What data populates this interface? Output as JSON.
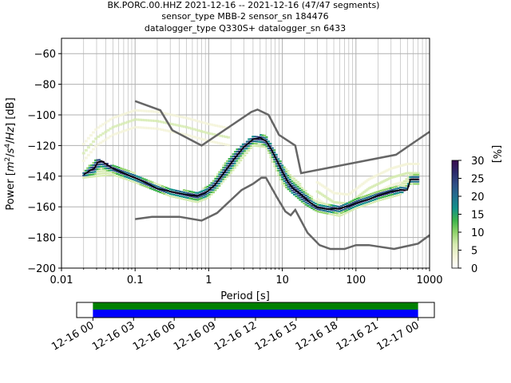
{
  "chart_data": {
    "type": "heatmap",
    "title_lines": [
      "BK.PORC.00.HHZ   2021-12-16 -- 2021-12-16  (47/47 segments)",
      "sensor_type MBB-2 sensor_sn 184476",
      "datalogger_type Q330S+ datalogger_sn 6433"
    ],
    "xlabel": "Period [s]",
    "ylabel_text": "Power [m²/s⁴/Hz] [dB]",
    "x_scale": "log",
    "xlim": [
      0.01,
      1000
    ],
    "ylim": [
      -200,
      -50
    ],
    "x_ticks": [
      {
        "value": 0.01,
        "label": "0.01"
      },
      {
        "value": 0.1,
        "label": "0.1"
      },
      {
        "value": 1,
        "label": "1"
      },
      {
        "value": 10,
        "label": "10"
      },
      {
        "value": 100,
        "label": "100"
      },
      {
        "value": 1000,
        "label": "1000"
      }
    ],
    "y_ticks": [
      {
        "value": -60,
        "label": "−60"
      },
      {
        "value": -80,
        "label": "−80"
      },
      {
        "value": -100,
        "label": "−100"
      },
      {
        "value": -120,
        "label": "−120"
      },
      {
        "value": -140,
        "label": "−140"
      },
      {
        "value": -160,
        "label": "−160"
      },
      {
        "value": -180,
        "label": "−180"
      },
      {
        "value": -200,
        "label": "−200"
      }
    ],
    "grid": true,
    "noise_model_high": [
      [
        0.1,
        -91
      ],
      [
        0.22,
        -97
      ],
      [
        0.32,
        -110
      ],
      [
        0.8,
        -120
      ],
      [
        3.8,
        -98
      ],
      [
        4.6,
        -96.5
      ],
      [
        6.5,
        -100
      ],
      [
        9,
        -113
      ],
      [
        15,
        -120
      ],
      [
        18,
        -138
      ],
      [
        350,
        -126
      ],
      [
        1000,
        -111
      ]
    ],
    "noise_model_low": [
      [
        0.1,
        -168
      ],
      [
        0.17,
        -166.5
      ],
      [
        0.4,
        -166.5
      ],
      [
        0.8,
        -169
      ],
      [
        1.3,
        -164
      ],
      [
        2.8,
        -149
      ],
      [
        4,
        -145
      ],
      [
        5.2,
        -141
      ],
      [
        6,
        -141
      ],
      [
        8.5,
        -154
      ],
      [
        11,
        -163
      ],
      [
        13,
        -165.5
      ],
      [
        15,
        -162
      ],
      [
        22,
        -177
      ],
      [
        32,
        -185
      ],
      [
        45,
        -187.5
      ],
      [
        70,
        -187.5
      ],
      [
        100,
        -185
      ],
      [
        150,
        -185
      ],
      [
        330,
        -187.5
      ],
      [
        700,
        -184
      ],
      [
        1000,
        -178.5
      ]
    ],
    "mode_line": [
      [
        0.02,
        -139
      ],
      [
        0.025,
        -136
      ],
      [
        0.028,
        -135
      ],
      [
        0.031,
        -131
      ],
      [
        0.035,
        -130
      ],
      [
        0.04,
        -132
      ],
      [
        0.05,
        -135
      ],
      [
        0.07,
        -138
      ],
      [
        0.1,
        -141
      ],
      [
        0.15,
        -145
      ],
      [
        0.2,
        -148
      ],
      [
        0.3,
        -150
      ],
      [
        0.5,
        -152
      ],
      [
        0.7,
        -153
      ],
      [
        0.9,
        -151
      ],
      [
        1.2,
        -146
      ],
      [
        1.6,
        -138
      ],
      [
        2.2,
        -129
      ],
      [
        3,
        -121
      ],
      [
        4,
        -116
      ],
      [
        5,
        -115
      ],
      [
        6,
        -117
      ],
      [
        7,
        -122
      ],
      [
        8.5,
        -130
      ],
      [
        10,
        -137
      ],
      [
        12,
        -144
      ],
      [
        14,
        -148
      ],
      [
        17,
        -151
      ],
      [
        20,
        -154
      ],
      [
        25,
        -158
      ],
      [
        30,
        -160.5
      ],
      [
        40,
        -161.5
      ],
      [
        60,
        -161
      ],
      [
        80,
        -159.5
      ],
      [
        100,
        -157.5
      ],
      [
        150,
        -155
      ],
      [
        200,
        -152.5
      ],
      [
        300,
        -150
      ],
      [
        400,
        -149
      ],
      [
        500,
        -149
      ],
      [
        550,
        -142
      ],
      [
        700,
        -142
      ]
    ],
    "histogram_spread": [
      [
        0.02,
        -141,
        -137
      ],
      [
        0.03,
        -140,
        -128
      ],
      [
        0.05,
        -139,
        -133
      ],
      [
        0.1,
        -144,
        -138
      ],
      [
        0.3,
        -153,
        -148
      ],
      [
        0.7,
        -157,
        -150
      ],
      [
        1,
        -154,
        -146
      ],
      [
        2,
        -138,
        -126
      ],
      [
        4,
        -120,
        -113
      ],
      [
        6,
        -121,
        -113
      ],
      [
        10,
        -145,
        -132
      ],
      [
        20,
        -158,
        -148
      ],
      [
        30,
        -163,
        -157
      ],
      [
        60,
        -166,
        -159
      ],
      [
        100,
        -161,
        -154
      ],
      [
        200,
        -156,
        -150
      ],
      [
        400,
        -152,
        -146
      ],
      [
        550,
        -145,
        -139
      ],
      [
        700,
        -145,
        -138
      ]
    ],
    "faint_high_traces": [
      [
        0.02,
        -125
      ],
      [
        0.03,
        -115
      ],
      [
        0.05,
        -108
      ],
      [
        0.1,
        -103
      ],
      [
        0.2,
        -104
      ],
      [
        0.5,
        -108
      ],
      [
        1,
        -112
      ],
      [
        2,
        -115
      ]
    ],
    "faint_low_traces": [
      [
        30,
        -150
      ],
      [
        50,
        -157
      ],
      [
        80,
        -158
      ],
      [
        150,
        -148
      ],
      [
        300,
        -141
      ],
      [
        500,
        -138
      ],
      [
        700,
        -138
      ]
    ],
    "colorbar": {
      "label": "[%]",
      "min": 0,
      "max": 30,
      "ticks": [
        {
          "value": 0,
          "label": "0"
        },
        {
          "value": 5,
          "label": "5"
        },
        {
          "value": 10,
          "label": "10"
        },
        {
          "value": 15,
          "label": "15"
        },
        {
          "value": 20,
          "label": "20"
        },
        {
          "value": 25,
          "label": "25"
        },
        {
          "value": 30,
          "label": "30"
        }
      ],
      "colormap": [
        "#ffffff",
        "#f4f4d8",
        "#d6ebb0",
        "#8fd36a",
        "#3cb44b",
        "#13918a",
        "#226f8f",
        "#2f4f86",
        "#2c2a6b",
        "#3a0c4d"
      ]
    },
    "timeline": {
      "start_hour": 0,
      "end_hour": 24,
      "span_start_hour": -1.2,
      "span_end_hour": 25.2,
      "ticks": [
        {
          "value": 0,
          "label": "12-16 00"
        },
        {
          "value": 3,
          "label": "12-16 03"
        },
        {
          "value": 6,
          "label": "12-16 06"
        },
        {
          "value": 9,
          "label": "12-16 09"
        },
        {
          "value": 12,
          "label": "12-16 12"
        },
        {
          "value": 15,
          "label": "12-16 15"
        },
        {
          "value": 18,
          "label": "12-16 18"
        },
        {
          "value": 21,
          "label": "12-16 21"
        },
        {
          "value": 24,
          "label": "12-17 00"
        }
      ],
      "coverage_color": "#0000ff",
      "data_color": "#008000"
    },
    "colors": {
      "grid": "#b0b0b0",
      "noise_model": "#666666",
      "mode_line": "#000000"
    }
  }
}
